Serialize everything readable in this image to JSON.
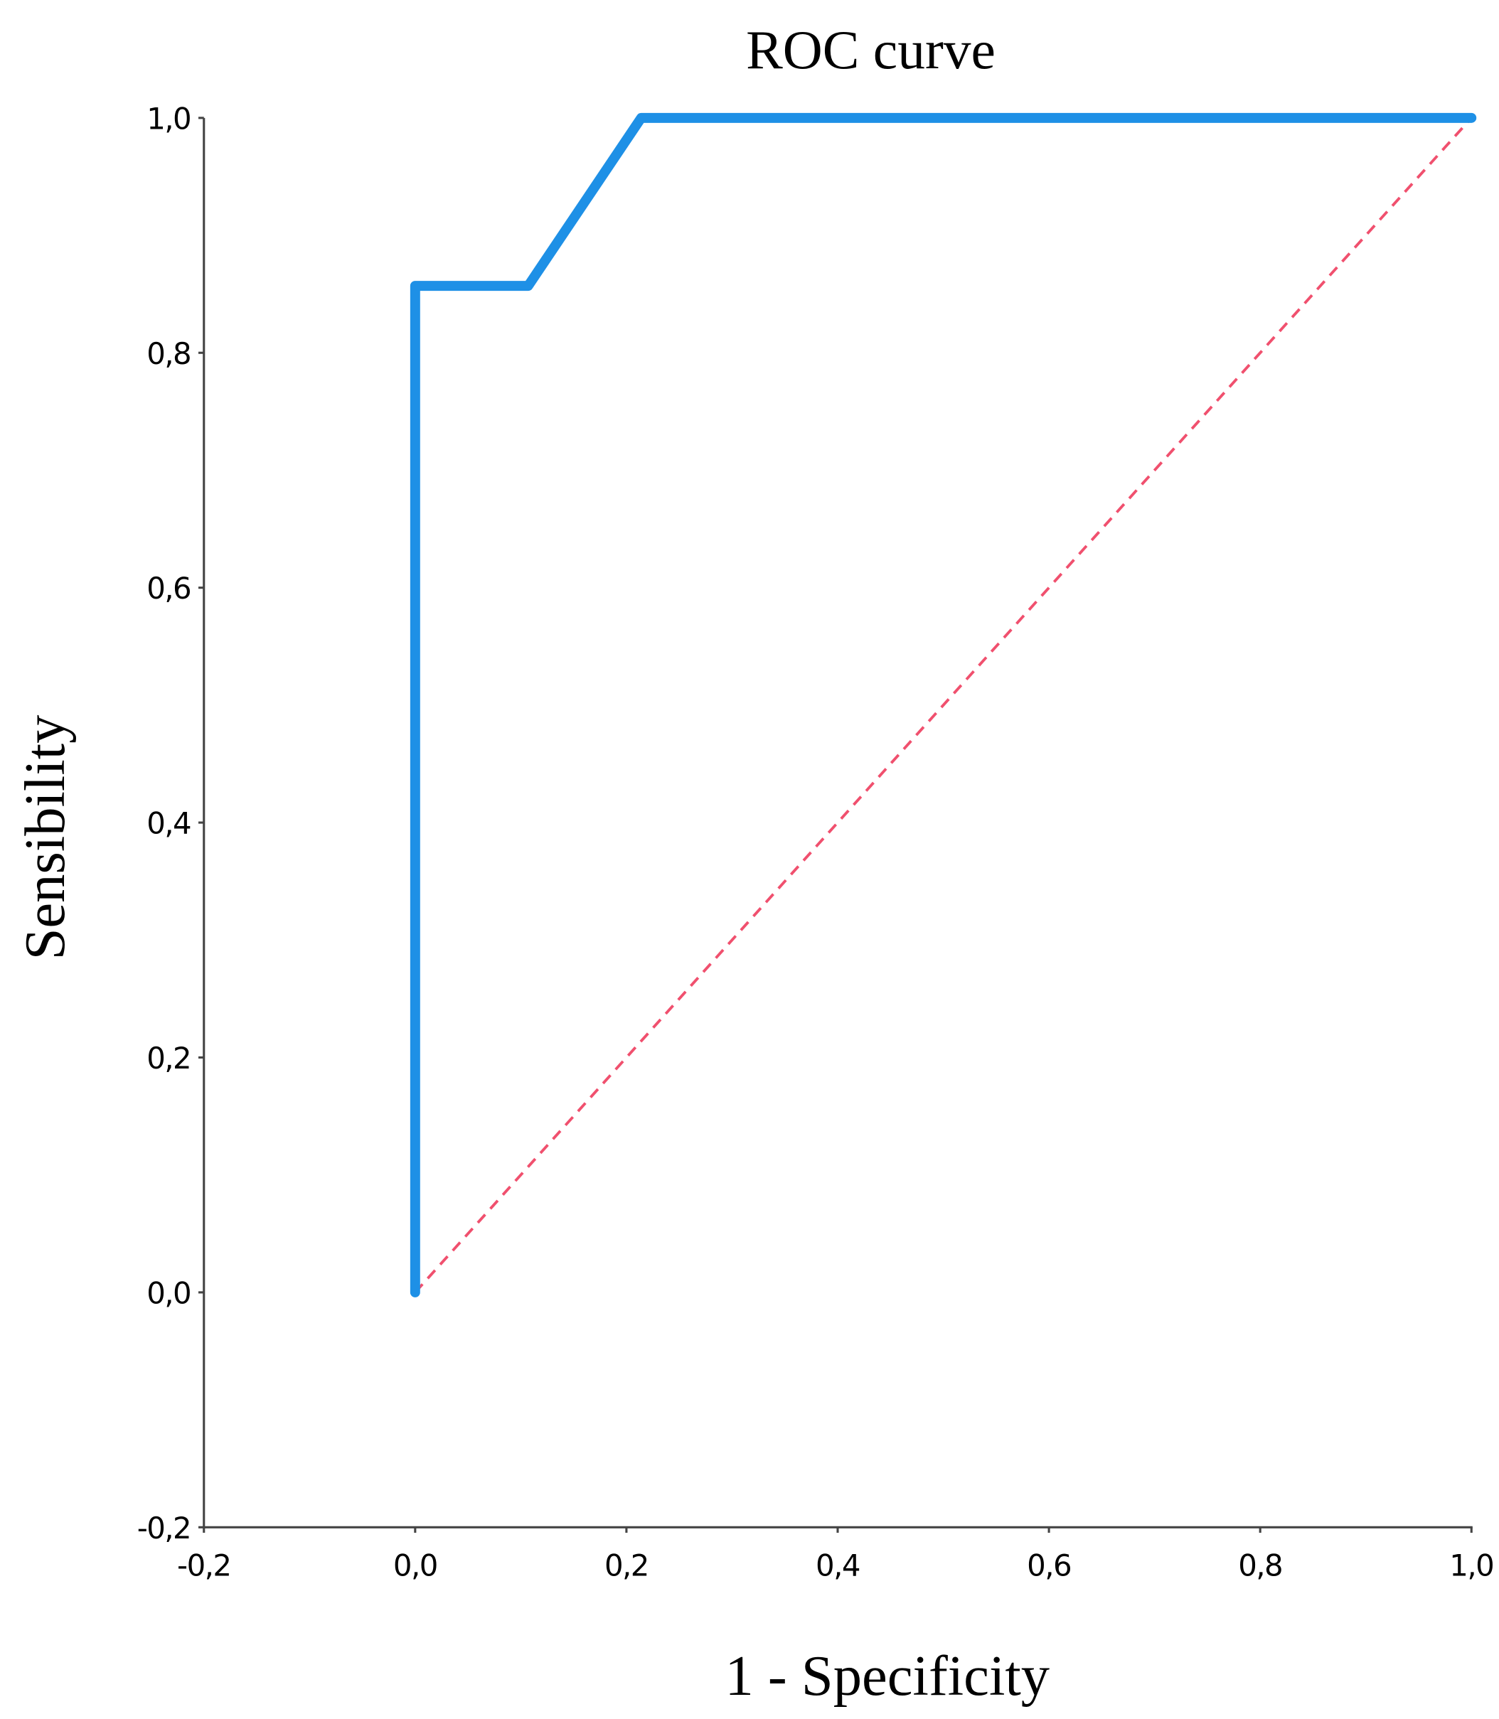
{
  "chart_data": {
    "type": "line",
    "title": "ROC curve",
    "x_label": "1 - Specificity",
    "y_label": "Sensibility",
    "xlim": [
      -0.2,
      1.0
    ],
    "ylim": [
      -0.2,
      1.0
    ],
    "xticks": [
      {
        "value": -0.2,
        "label": "-0,2"
      },
      {
        "value": 0,
        "label": "0,0"
      },
      {
        "value": 0.2,
        "label": "0,2"
      },
      {
        "value": 0.4,
        "label": "0,4"
      },
      {
        "value": 0.6,
        "label": "0,6"
      },
      {
        "value": 0.8,
        "label": "0,8"
      },
      {
        "value": 1.0,
        "label": "1,0"
      }
    ],
    "yticks": [
      {
        "value": -0.2,
        "label": "-0,2"
      },
      {
        "value": 0,
        "label": "0,0"
      },
      {
        "value": 0.2,
        "label": "0,2"
      },
      {
        "value": 0.4,
        "label": "0,4"
      },
      {
        "value": 0.6,
        "label": "0,6"
      },
      {
        "value": 0.8,
        "label": "0,8"
      },
      {
        "value": 1.0,
        "label": "1,0"
      }
    ],
    "grid": false,
    "series": [
      {
        "color": "#1e90e6",
        "x": [
          0,
          0,
          0.107,
          0.214,
          1.0
        ],
        "values": [
          0,
          0.857,
          0.857,
          1.0,
          1.0
        ],
        "dashed": false
      },
      {
        "color": "#f0506e",
        "x": [
          0,
          1.0
        ],
        "values": [
          0,
          1.0
        ],
        "dashed": true
      }
    ]
  }
}
